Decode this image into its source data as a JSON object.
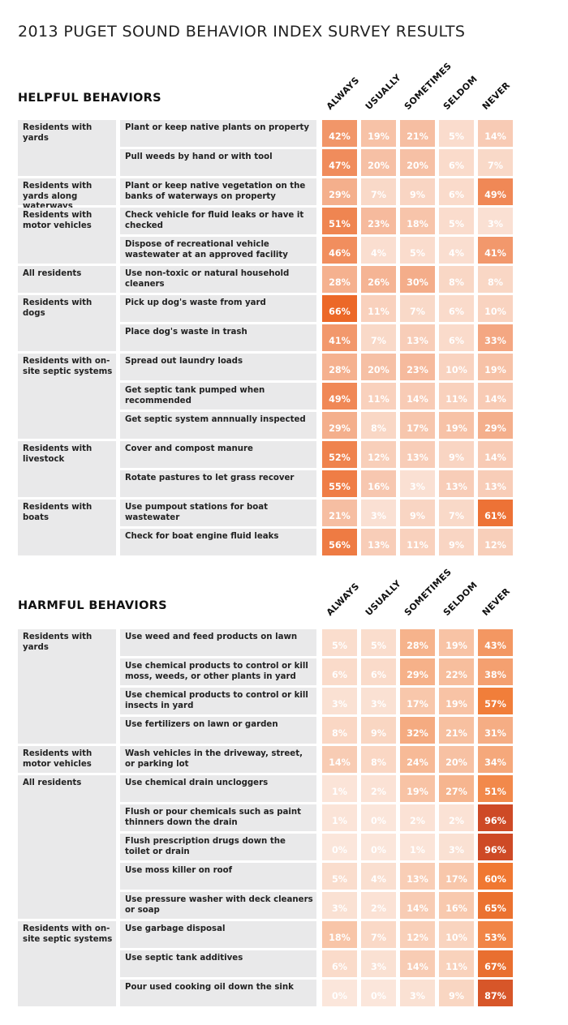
{
  "title": "2013 PUGET SOUND BEHAVIOR INDEX SURVEY RESULTS",
  "columns": [
    "ALWAYS",
    "USUALLY",
    "SOMETIMES",
    "SELDOM",
    "NEVER"
  ],
  "chart_data": [
    {
      "type": "heatmap",
      "title": "HELPFUL BEHAVIORS",
      "columns": [
        "ALWAYS",
        "USUALLY",
        "SOMETIMES",
        "SELDOM",
        "NEVER"
      ],
      "groups": [
        {
          "label": "Residents with yards",
          "rows": [
            {
              "behavior": "Plant or keep native plants on property",
              "values": [
                42,
                19,
                21,
                5,
                14
              ]
            },
            {
              "behavior": "Pull weeds by hand or with tool",
              "values": [
                47,
                20,
                20,
                6,
                7
              ]
            }
          ]
        },
        {
          "label": "Residents with yards along waterways",
          "rows": [
            {
              "behavior": "Plant or keep native vegetation on the banks of waterways on property",
              "values": [
                29,
                7,
                9,
                6,
                49
              ]
            }
          ]
        },
        {
          "label": "Residents with motor vehicles",
          "rows": [
            {
              "behavior": "Check vehicle for fluid leaks or have it checked",
              "values": [
                51,
                23,
                18,
                5,
                3
              ]
            },
            {
              "behavior": "Dispose of recreational vehicle wastewater at an approved facility",
              "values": [
                46,
                4,
                5,
                4,
                41
              ]
            }
          ]
        },
        {
          "label": "All residents",
          "rows": [
            {
              "behavior": "Use non-toxic or natural household cleaners",
              "values": [
                28,
                26,
                30,
                8,
                8
              ]
            }
          ]
        },
        {
          "label": "Residents with dogs",
          "rows": [
            {
              "behavior": "Pick up dog's waste from yard",
              "values": [
                66,
                11,
                7,
                6,
                10
              ]
            },
            {
              "behavior": "Place dog's waste in trash",
              "values": [
                41,
                7,
                13,
                6,
                33
              ]
            }
          ]
        },
        {
          "label": "Residents with on-site septic systems",
          "rows": [
            {
              "behavior": "Spread out laundry loads",
              "values": [
                28,
                20,
                23,
                10,
                19
              ]
            },
            {
              "behavior": "Get septic tank pumped when recommended",
              "values": [
                49,
                11,
                14,
                11,
                14
              ]
            },
            {
              "behavior": "Get septic system annnually inspected",
              "values": [
                29,
                8,
                17,
                19,
                29
              ]
            }
          ]
        },
        {
          "label": "Residents with livestock",
          "rows": [
            {
              "behavior": "Cover and compost manure",
              "values": [
                52,
                12,
                13,
                9,
                14
              ]
            },
            {
              "behavior": "Rotate pastures to let grass recover",
              "values": [
                55,
                16,
                3,
                13,
                13
              ]
            }
          ]
        },
        {
          "label": "Residents with boats",
          "rows": [
            {
              "behavior": "Use pumpout stations for boat wastewater",
              "values": [
                21,
                3,
                9,
                7,
                61
              ]
            },
            {
              "behavior": "Check for boat engine fluid leaks",
              "values": [
                56,
                13,
                11,
                9,
                12
              ]
            }
          ]
        }
      ]
    },
    {
      "type": "heatmap",
      "title": "HARMFUL BEHAVIORS",
      "columns": [
        "ALWAYS",
        "USUALLY",
        "SOMETIMES",
        "SELDOM",
        "NEVER"
      ],
      "groups": [
        {
          "label": "Residents with yards",
          "rows": [
            {
              "behavior": "Use weed and feed products on lawn",
              "values": [
                5,
                5,
                28,
                19,
                43
              ]
            },
            {
              "behavior": "Use chemical products to control or kill moss, weeds, or other plants in yard",
              "values": [
                6,
                6,
                29,
                22,
                38
              ]
            },
            {
              "behavior": "Use chemical products to control or kill insects in yard",
              "values": [
                3,
                3,
                17,
                19,
                57
              ]
            },
            {
              "behavior": "Use fertilizers on lawn or garden",
              "values": [
                8,
                9,
                32,
                21,
                31
              ]
            }
          ]
        },
        {
          "label": "Residents with motor vehicles",
          "rows": [
            {
              "behavior": "Wash vehicles in the driveway, street, or parking lot",
              "values": [
                14,
                8,
                24,
                20,
                34
              ]
            }
          ]
        },
        {
          "label": "All residents",
          "rows": [
            {
              "behavior": "Use chemical drain uncloggers",
              "values": [
                1,
                2,
                19,
                27,
                51
              ]
            },
            {
              "behavior": "Flush or pour chemicals such as paint thinners down the drain",
              "values": [
                1,
                0,
                2,
                2,
                96
              ]
            },
            {
              "behavior": "Flush prescription drugs down the toilet or drain",
              "values": [
                0,
                0,
                1,
                3,
                96
              ]
            },
            {
              "behavior": "Use moss killer on roof",
              "values": [
                5,
                4,
                13,
                17,
                60
              ]
            },
            {
              "behavior": "Use pressure washer with deck cleaners or soap",
              "values": [
                3,
                2,
                14,
                16,
                65
              ]
            }
          ]
        },
        {
          "label": "Residents with on-site septic systems",
          "rows": [
            {
              "behavior": "Use garbage disposal",
              "values": [
                18,
                7,
                12,
                10,
                53
              ]
            },
            {
              "behavior": "Use septic tank additives",
              "values": [
                6,
                3,
                14,
                11,
                67
              ]
            },
            {
              "behavior": "Pour used cooking oil down the sink",
              "values": [
                0,
                0,
                3,
                9,
                87
              ]
            }
          ]
        }
      ]
    }
  ]
}
